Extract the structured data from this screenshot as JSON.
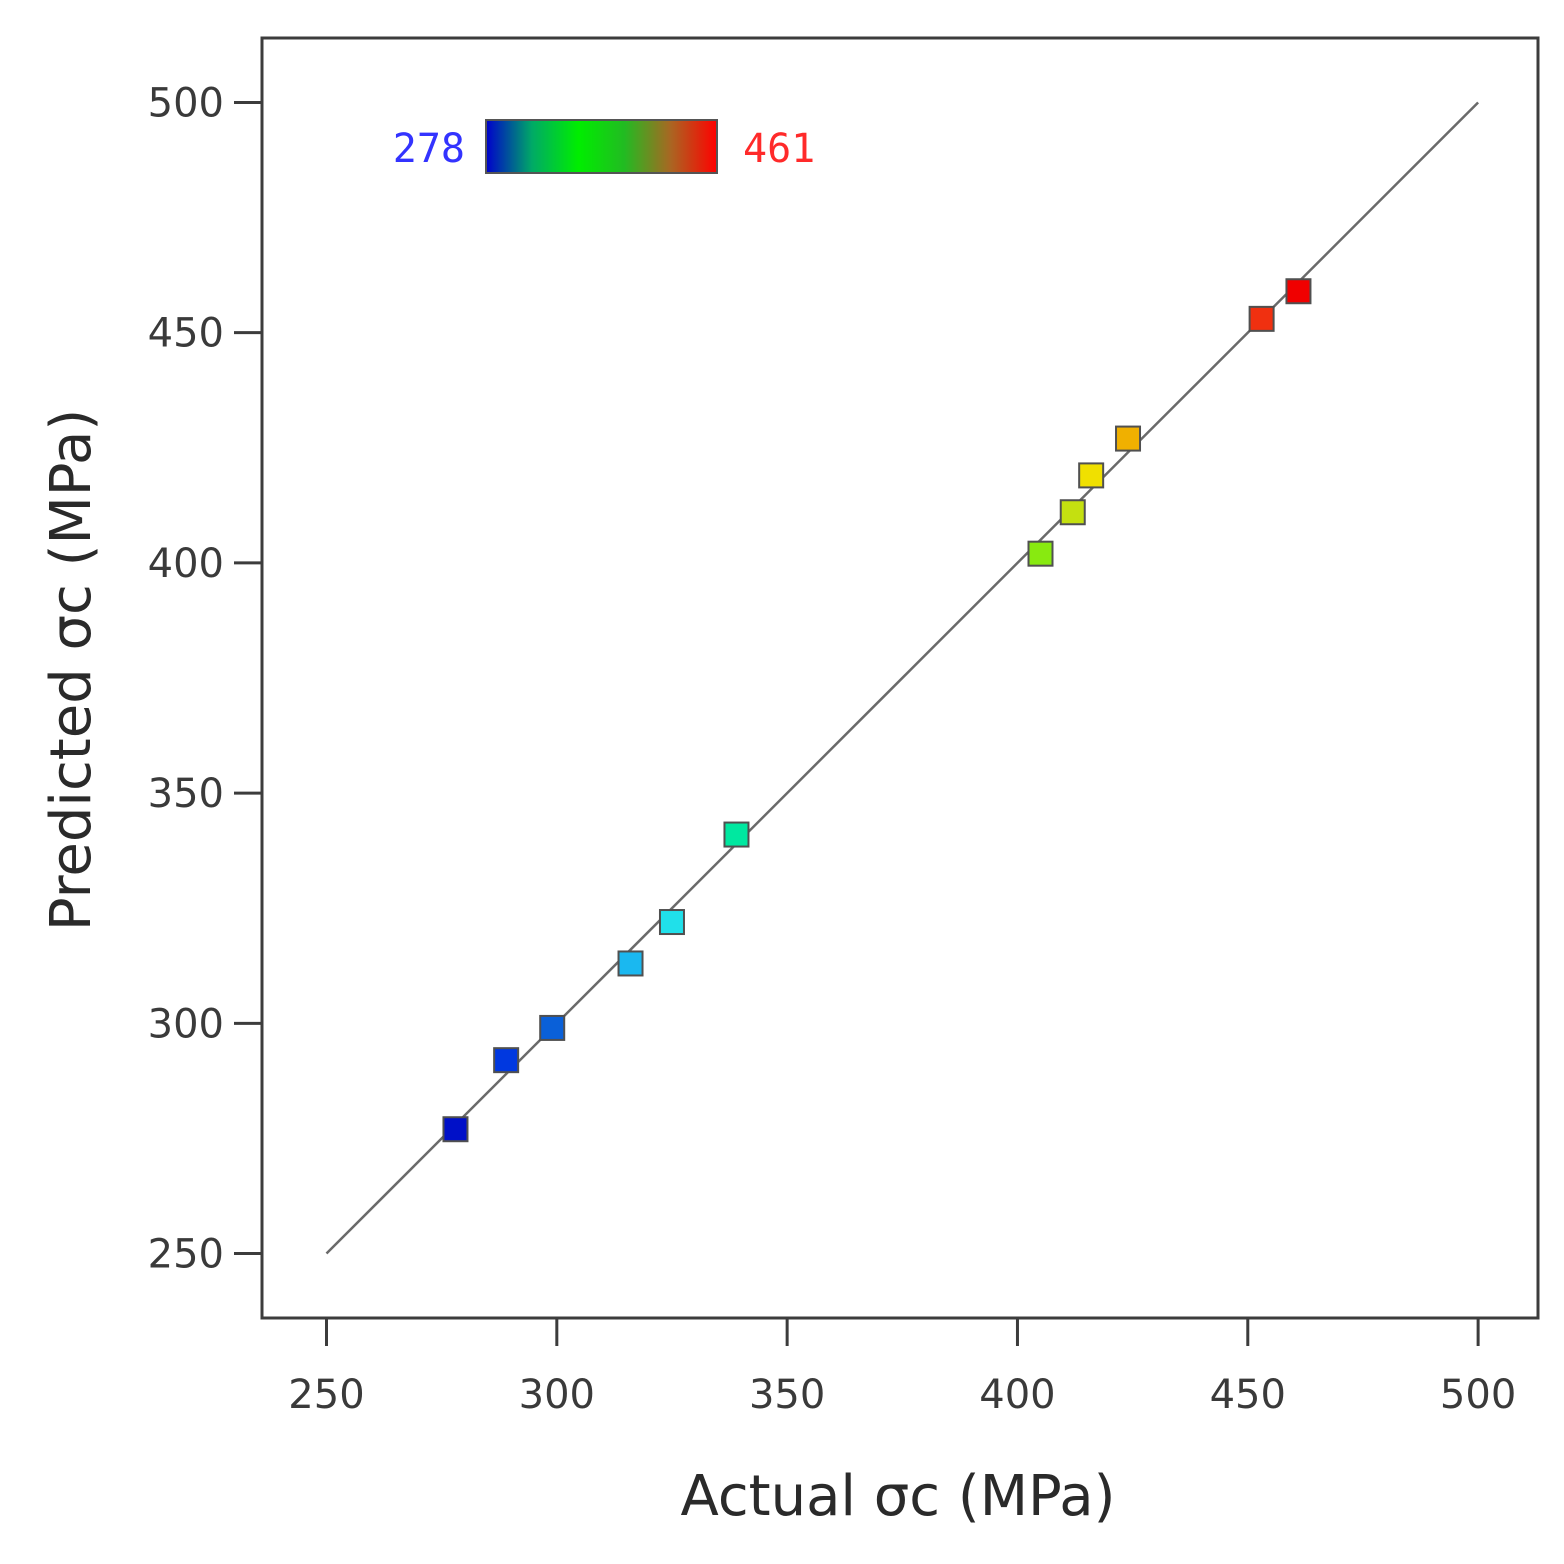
{
  "chart_data": {
    "type": "scatter",
    "title": "",
    "xlabel": "Actual σc (MPa)",
    "ylabel": "Predicted σc (MPa)",
    "xlim": [
      236,
      513
    ],
    "ylim": [
      236,
      514
    ],
    "xticks": [
      250,
      300,
      350,
      400,
      450,
      500
    ],
    "yticks": [
      250,
      300,
      350,
      400,
      450,
      500
    ],
    "xtick_labels": [
      "250",
      "300",
      "350",
      "400",
      "450",
      "500"
    ],
    "ytick_labels": [
      "250",
      "300",
      "350",
      "400",
      "450",
      "500"
    ],
    "reference_line": {
      "from": [
        250,
        250
      ],
      "to": [
        500,
        500
      ]
    },
    "color_scale": {
      "min_label": "278",
      "max_label": "461",
      "min": 278,
      "max": 461,
      "min_color": "#3333ff",
      "max_color": "#ff2a2a",
      "stops": [
        "#0000cc",
        "#00aa66",
        "#00ee00",
        "#22bb22",
        "#aa6622",
        "#ff0000"
      ]
    },
    "points": [
      {
        "actual": 278,
        "predicted": 277,
        "color": "#0010c8"
      },
      {
        "actual": 289,
        "predicted": 292,
        "color": "#0038e0"
      },
      {
        "actual": 299,
        "predicted": 299,
        "color": "#0a60d8"
      },
      {
        "actual": 316,
        "predicted": 313,
        "color": "#1ab8f0"
      },
      {
        "actual": 325,
        "predicted": 322,
        "color": "#20e0ea"
      },
      {
        "actual": 339,
        "predicted": 341,
        "color": "#00e8a0"
      },
      {
        "actual": 405,
        "predicted": 402,
        "color": "#88ea10"
      },
      {
        "actual": 412,
        "predicted": 411,
        "color": "#c4e010"
      },
      {
        "actual": 416,
        "predicted": 419,
        "color": "#f0e000"
      },
      {
        "actual": 424,
        "predicted": 427,
        "color": "#f0b000"
      },
      {
        "actual": 453,
        "predicted": 453,
        "color": "#f03010"
      },
      {
        "actual": 461,
        "predicted": 459,
        "color": "#f00000"
      }
    ]
  }
}
